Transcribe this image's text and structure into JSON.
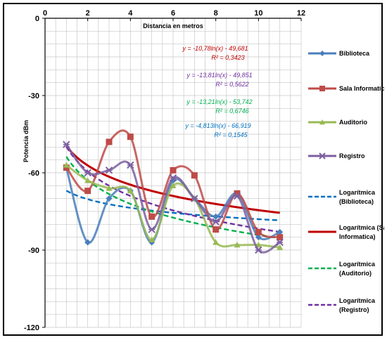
{
  "chart_data": {
    "type": "line",
    "title": "",
    "xlabel": "Distancia en metros",
    "ylabel": "Potencia dBm",
    "xlim": [
      0,
      12
    ],
    "ylim": [
      -120,
      0
    ],
    "x_ticks": [
      "0",
      "2",
      "4",
      "6",
      "8",
      "10",
      "12"
    ],
    "y_ticks": [
      "0",
      "-30",
      "-60",
      "-90",
      "-120"
    ],
    "grid": true,
    "legend_placement": "right",
    "x": [
      1,
      2,
      3,
      4,
      5,
      6,
      7,
      8,
      9,
      10,
      11
    ],
    "series": [
      {
        "name": "Biblioteca",
        "color": "#4a7ebb",
        "marker": "diamond",
        "values": [
          -58,
          -87,
          -70,
          -67,
          -87,
          -63,
          -70,
          -77,
          -68,
          -85,
          -83
        ]
      },
      {
        "name": "Sala Informatica",
        "color": "#be4b48",
        "marker": "square",
        "values": [
          -58,
          -67,
          -48,
          -46,
          -77,
          -59,
          -61,
          -82,
          -68,
          -83,
          -85
        ]
      },
      {
        "name": "Auditorio",
        "color": "#98b954",
        "marker": "triangle",
        "values": [
          -57,
          -63,
          -66,
          -67,
          -86,
          -65,
          -70,
          -87,
          -88,
          -88,
          -89
        ]
      },
      {
        "name": "Registro",
        "color": "#7d60a0",
        "marker": "x",
        "values": [
          -49,
          -60,
          -59,
          -57,
          -82,
          -62,
          -70,
          -79,
          -69,
          -90,
          -87
        ]
      }
    ],
    "trendlines": [
      {
        "name": "Logarítmica (Biblioteca)",
        "color": "#0070c0",
        "dash": "dashed",
        "a": -4.813,
        "b": -66.919
      },
      {
        "name": "Logarítmica (Sala Informatica)",
        "color": "#c00000",
        "dash": "solid",
        "a": -10.78,
        "b": -49.681
      },
      {
        "name": "Logarítmica (Auditorio)",
        "color": "#00b050",
        "dash": "dashed",
        "a": -13.21,
        "b": -53.742
      },
      {
        "name": "Logarítmica (Registro)",
        "color": "#7030a0",
        "dash": "dashed",
        "a": -13.81,
        "b": -49.851
      }
    ],
    "annotations": [
      {
        "line1": "y = -10,78ln(x) - 49,681",
        "line2": "R² = 0,3423",
        "color": "#c00000"
      },
      {
        "line1": "y = -13,81ln(x) - 49,851",
        "line2": "R² = 0,5622",
        "color": "#7030a0"
      },
      {
        "line1": "y = -13,21ln(x) - 53,742",
        "line2": "R² = 0,6746",
        "color": "#00b050"
      },
      {
        "line1": "y = -4,813ln(x) - 66,919",
        "line2": "R² = 0,1545",
        "color": "#0070c0"
      }
    ],
    "legend": [
      {
        "label_lines": [
          "Biblioteca"
        ],
        "color": "#4a7ebb",
        "style": "series",
        "marker": "diamond"
      },
      {
        "label_lines": [
          "Sala Informatica"
        ],
        "color": "#be4b48",
        "style": "series",
        "marker": "square"
      },
      {
        "label_lines": [
          "Auditorio"
        ],
        "color": "#98b954",
        "style": "series",
        "marker": "triangle"
      },
      {
        "label_lines": [
          "Registro"
        ],
        "color": "#7d60a0",
        "style": "series",
        "marker": "x"
      },
      {
        "label_lines": [
          "Logarítmica",
          "(Biblioteca)"
        ],
        "color": "#0070c0",
        "style": "dashed"
      },
      {
        "label_lines": [
          "Logarítmica (Sala",
          "Informatica)"
        ],
        "color": "#c00000",
        "style": "solid"
      },
      {
        "label_lines": [
          "Logarítmica",
          "(Auditorio)"
        ],
        "color": "#00b050",
        "style": "dashed"
      },
      {
        "label_lines": [
          "Logarítmica",
          "(Registro)"
        ],
        "color": "#7030a0",
        "style": "dashed"
      }
    ]
  }
}
